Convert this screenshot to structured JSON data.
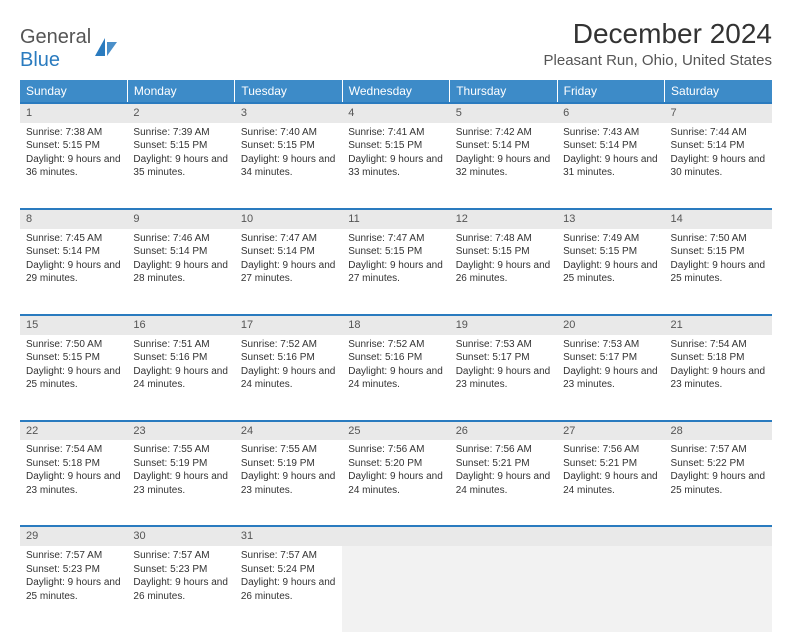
{
  "logo": {
    "word1": "General",
    "word2": "Blue"
  },
  "title": "December 2024",
  "location": "Pleasant Run, Ohio, United States",
  "colors": {
    "header_bg": "#3d8bc8",
    "header_text": "#ffffff",
    "daynum_bg": "#e9e9e9",
    "row_border": "#2a7bbf",
    "logo_accent": "#2a7bbf",
    "text": "#333333"
  },
  "weekdays": [
    "Sunday",
    "Monday",
    "Tuesday",
    "Wednesday",
    "Thursday",
    "Friday",
    "Saturday"
  ],
  "weeks": [
    [
      {
        "n": "1",
        "sr": "7:38 AM",
        "ss": "5:15 PM",
        "dl": "9 hours and 36 minutes."
      },
      {
        "n": "2",
        "sr": "7:39 AM",
        "ss": "5:15 PM",
        "dl": "9 hours and 35 minutes."
      },
      {
        "n": "3",
        "sr": "7:40 AM",
        "ss": "5:15 PM",
        "dl": "9 hours and 34 minutes."
      },
      {
        "n": "4",
        "sr": "7:41 AM",
        "ss": "5:15 PM",
        "dl": "9 hours and 33 minutes."
      },
      {
        "n": "5",
        "sr": "7:42 AM",
        "ss": "5:14 PM",
        "dl": "9 hours and 32 minutes."
      },
      {
        "n": "6",
        "sr": "7:43 AM",
        "ss": "5:14 PM",
        "dl": "9 hours and 31 minutes."
      },
      {
        "n": "7",
        "sr": "7:44 AM",
        "ss": "5:14 PM",
        "dl": "9 hours and 30 minutes."
      }
    ],
    [
      {
        "n": "8",
        "sr": "7:45 AM",
        "ss": "5:14 PM",
        "dl": "9 hours and 29 minutes."
      },
      {
        "n": "9",
        "sr": "7:46 AM",
        "ss": "5:14 PM",
        "dl": "9 hours and 28 minutes."
      },
      {
        "n": "10",
        "sr": "7:47 AM",
        "ss": "5:14 PM",
        "dl": "9 hours and 27 minutes."
      },
      {
        "n": "11",
        "sr": "7:47 AM",
        "ss": "5:15 PM",
        "dl": "9 hours and 27 minutes."
      },
      {
        "n": "12",
        "sr": "7:48 AM",
        "ss": "5:15 PM",
        "dl": "9 hours and 26 minutes."
      },
      {
        "n": "13",
        "sr": "7:49 AM",
        "ss": "5:15 PM",
        "dl": "9 hours and 25 minutes."
      },
      {
        "n": "14",
        "sr": "7:50 AM",
        "ss": "5:15 PM",
        "dl": "9 hours and 25 minutes."
      }
    ],
    [
      {
        "n": "15",
        "sr": "7:50 AM",
        "ss": "5:15 PM",
        "dl": "9 hours and 25 minutes."
      },
      {
        "n": "16",
        "sr": "7:51 AM",
        "ss": "5:16 PM",
        "dl": "9 hours and 24 minutes."
      },
      {
        "n": "17",
        "sr": "7:52 AM",
        "ss": "5:16 PM",
        "dl": "9 hours and 24 minutes."
      },
      {
        "n": "18",
        "sr": "7:52 AM",
        "ss": "5:16 PM",
        "dl": "9 hours and 24 minutes."
      },
      {
        "n": "19",
        "sr": "7:53 AM",
        "ss": "5:17 PM",
        "dl": "9 hours and 23 minutes."
      },
      {
        "n": "20",
        "sr": "7:53 AM",
        "ss": "5:17 PM",
        "dl": "9 hours and 23 minutes."
      },
      {
        "n": "21",
        "sr": "7:54 AM",
        "ss": "5:18 PM",
        "dl": "9 hours and 23 minutes."
      }
    ],
    [
      {
        "n": "22",
        "sr": "7:54 AM",
        "ss": "5:18 PM",
        "dl": "9 hours and 23 minutes."
      },
      {
        "n": "23",
        "sr": "7:55 AM",
        "ss": "5:19 PM",
        "dl": "9 hours and 23 minutes."
      },
      {
        "n": "24",
        "sr": "7:55 AM",
        "ss": "5:19 PM",
        "dl": "9 hours and 23 minutes."
      },
      {
        "n": "25",
        "sr": "7:56 AM",
        "ss": "5:20 PM",
        "dl": "9 hours and 24 minutes."
      },
      {
        "n": "26",
        "sr": "7:56 AM",
        "ss": "5:21 PM",
        "dl": "9 hours and 24 minutes."
      },
      {
        "n": "27",
        "sr": "7:56 AM",
        "ss": "5:21 PM",
        "dl": "9 hours and 24 minutes."
      },
      {
        "n": "28",
        "sr": "7:57 AM",
        "ss": "5:22 PM",
        "dl": "9 hours and 25 minutes."
      }
    ],
    [
      {
        "n": "29",
        "sr": "7:57 AM",
        "ss": "5:23 PM",
        "dl": "9 hours and 25 minutes."
      },
      {
        "n": "30",
        "sr": "7:57 AM",
        "ss": "5:23 PM",
        "dl": "9 hours and 26 minutes."
      },
      {
        "n": "31",
        "sr": "7:57 AM",
        "ss": "5:24 PM",
        "dl": "9 hours and 26 minutes."
      },
      null,
      null,
      null,
      null
    ]
  ],
  "labels": {
    "sunrise": "Sunrise:",
    "sunset": "Sunset:",
    "daylight": "Daylight:"
  }
}
